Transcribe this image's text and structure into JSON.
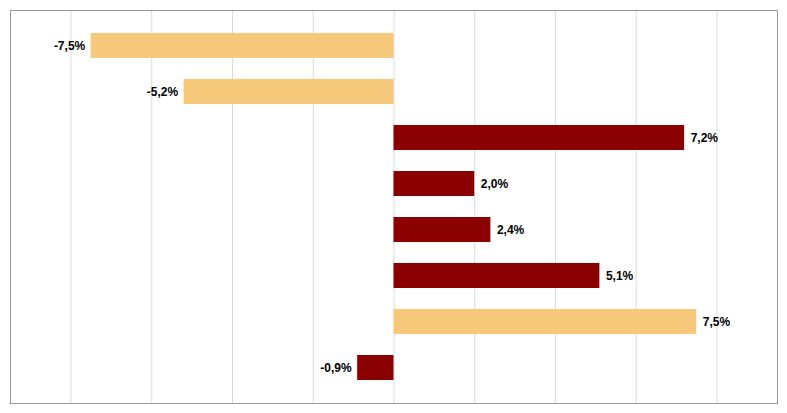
{
  "chart_data": {
    "type": "bar",
    "orientation": "horizontal",
    "categories": [
      null,
      null,
      null,
      null,
      null,
      null,
      null,
      null
    ],
    "values": [
      -7.5,
      -5.2,
      7.2,
      2.0,
      2.4,
      5.1,
      7.5,
      -0.9
    ],
    "value_labels": [
      "-7,5%",
      "-5,2%",
      "7,2%",
      "2,0%",
      "2,4%",
      "5,1%",
      "7,5%",
      "-0,9%"
    ],
    "colors": [
      "#F5C87A",
      "#F5C87A",
      "#8B0000",
      "#8B0000",
      "#8B0000",
      "#8B0000",
      "#F5C87A",
      "#8B0000"
    ],
    "xlim": [
      -9.5,
      9.5
    ],
    "xticks": [
      -8,
      -6,
      -4,
      -2,
      0,
      2,
      4,
      6,
      8
    ],
    "grid": true,
    "tick_labels": false,
    "data_labels": true
  }
}
